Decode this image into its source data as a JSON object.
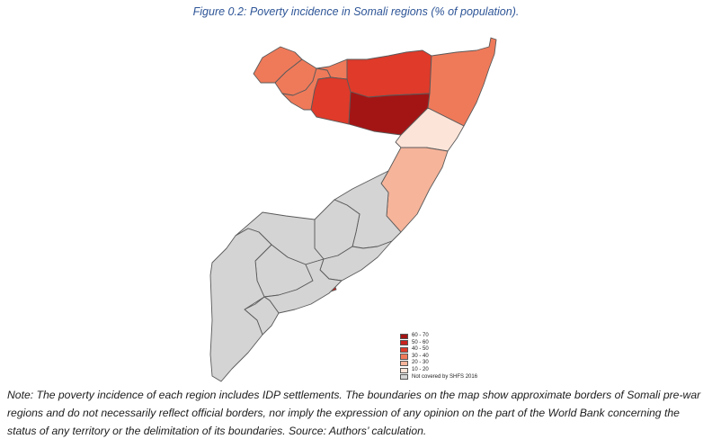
{
  "figure_caption": "Figure 0.2: Poverty incidence in Somali regions (% of population).",
  "legend": {
    "items": [
      {
        "label": "60 - 70",
        "color": "#a31515"
      },
      {
        "label": "50 - 60",
        "color": "#c8231e"
      },
      {
        "label": "40 - 50",
        "color": "#df3a2a"
      },
      {
        "label": "30 - 40",
        "color": "#ef7a5a"
      },
      {
        "label": "20 - 30",
        "color": "#f6b49a"
      },
      {
        "label": "10 - 20",
        "color": "#fde4d8"
      },
      {
        "label": "Not covered by SHFS 2016",
        "color": "#d4d4d4"
      }
    ]
  },
  "colors": {
    "caption": "#2e5597",
    "border": "#5a5a5a",
    "not_covered": "#d4d4d4"
  },
  "note": "Note: The poverty incidence of each region includes IDP settlements. The boundaries on the map show approximate borders of Somali pre-war regions and do not necessarily reflect official borders, nor imply the expression of any opinion on the part of the World Bank concerning the status of any territory or the delimitation of its boundaries. Source: Authors’ calculation."
}
